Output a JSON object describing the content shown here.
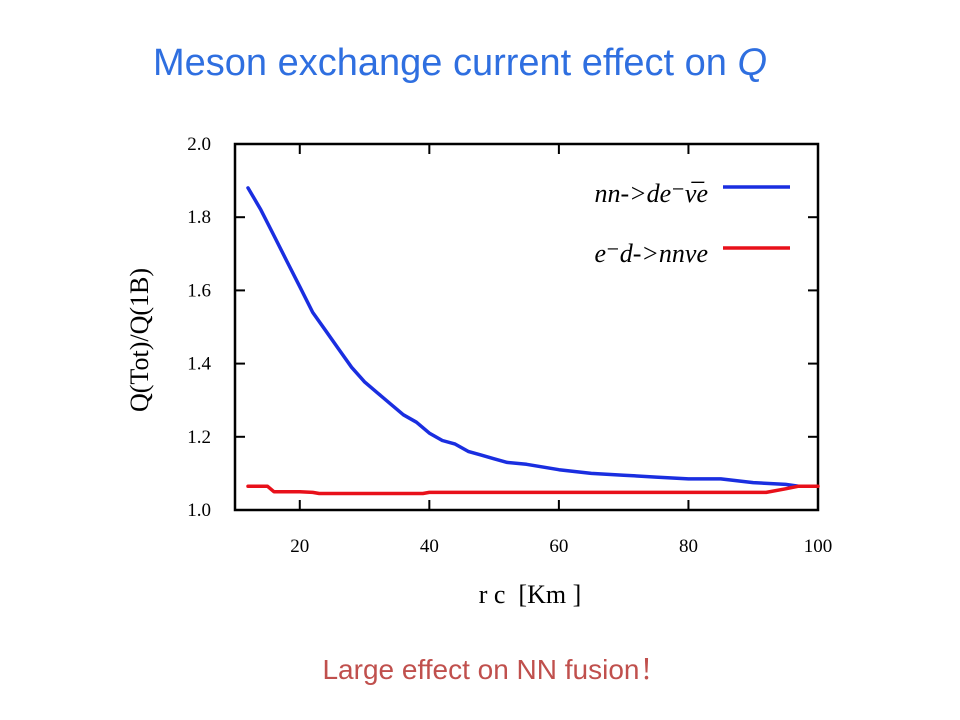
{
  "slide": {
    "title_main": "Meson exchange current effect on ",
    "title_var": "Q",
    "subtitle": "Large effect on NN fusion！"
  },
  "chart_data": {
    "type": "line",
    "xlabel": "r c  [Km ]",
    "ylabel": "Q(Tot)/Q(1B)",
    "xlim": [
      10,
      100
    ],
    "ylim": [
      1.0,
      2.0
    ],
    "xticks": [
      20,
      40,
      60,
      80,
      100
    ],
    "yticks": [
      "1.0",
      "1.2",
      "1.4",
      "1.6",
      "1.8",
      "2.0"
    ],
    "grid": false,
    "legend_position": "top-right",
    "series": [
      {
        "name": "nn->de⁻ν̅e",
        "color": "#1a2ee0",
        "x": [
          12,
          14,
          16,
          18,
          20,
          22,
          24,
          26,
          28,
          30,
          32,
          34,
          36,
          38,
          40,
          42,
          44,
          46,
          48,
          50,
          52,
          55,
          60,
          65,
          70,
          75,
          80,
          85,
          90,
          95,
          97
        ],
        "y": [
          1.88,
          1.82,
          1.75,
          1.68,
          1.61,
          1.54,
          1.49,
          1.44,
          1.39,
          1.35,
          1.32,
          1.29,
          1.26,
          1.24,
          1.21,
          1.19,
          1.18,
          1.16,
          1.15,
          1.14,
          1.13,
          1.125,
          1.11,
          1.1,
          1.095,
          1.09,
          1.085,
          1.085,
          1.075,
          1.07,
          1.065
        ]
      },
      {
        "name": "e⁻d->nnνe",
        "color": "#e8101a",
        "x": [
          12,
          15,
          16,
          18,
          20,
          22,
          23,
          25,
          30,
          35,
          39,
          40,
          45,
          50,
          55,
          60,
          65,
          70,
          75,
          80,
          85,
          90,
          92,
          95,
          97,
          100
        ],
        "y": [
          1.065,
          1.065,
          1.05,
          1.05,
          1.05,
          1.048,
          1.045,
          1.045,
          1.045,
          1.045,
          1.045,
          1.048,
          1.048,
          1.048,
          1.048,
          1.048,
          1.048,
          1.048,
          1.048,
          1.048,
          1.048,
          1.048,
          1.048,
          1.058,
          1.065,
          1.065
        ]
      }
    ]
  }
}
